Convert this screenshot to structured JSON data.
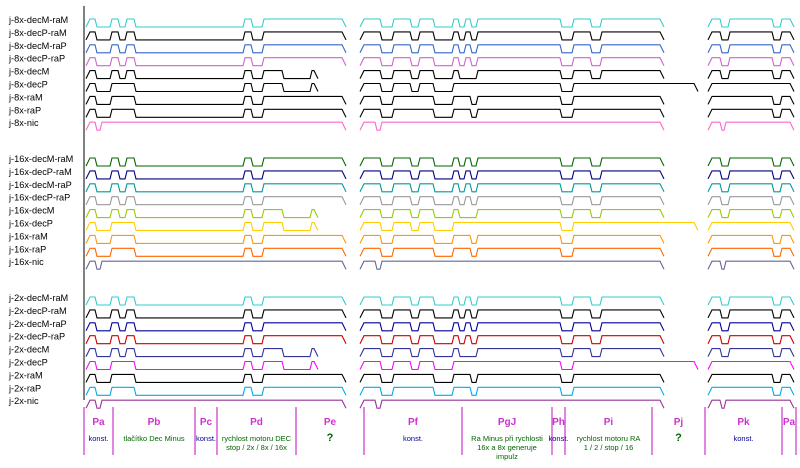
{
  "signals": [
    {
      "label": "j-8x-decM-raM",
      "color": "#33cccc",
      "k": 1
    },
    {
      "label": "j-8x-decP-raM",
      "color": "#000000",
      "k": 2
    },
    {
      "label": "j-8x-decM-raP",
      "color": "#3366cc",
      "k": 3
    },
    {
      "label": "j-8x-decP-raP",
      "color": "#cc66cc",
      "k": 4
    },
    {
      "label": "j-8x-decM",
      "color": "#000000",
      "k": 5
    },
    {
      "label": "j-8x-decP",
      "color": "#000000",
      "k": 6
    },
    {
      "label": "j-8x-raM",
      "color": "#000000",
      "k": 7
    },
    {
      "label": "j-8x-raP",
      "color": "#000000",
      "k": 8
    },
    {
      "label": "j-8x-nic",
      "color": "#ff66cc",
      "k": 9
    },
    {
      "label": "j-16x-decM-raM",
      "color": "#006600",
      "k": 1
    },
    {
      "label": "j-16x-decP-raM",
      "color": "#000080",
      "k": 2
    },
    {
      "label": "j-16x-decM-raP",
      "color": "#009999",
      "k": 3
    },
    {
      "label": "j-16x-decP-raP",
      "color": "#999999",
      "k": 4
    },
    {
      "label": "j-16x-decM",
      "color": "#99cc00",
      "k": 5
    },
    {
      "label": "j-16x-decP",
      "color": "#ffcc00",
      "k": 6
    },
    {
      "label": "j-16x-raM",
      "color": "#ff9900",
      "k": 7
    },
    {
      "label": "j-16x-raP",
      "color": "#ff6600",
      "k": 8
    },
    {
      "label": "j-16x-nic",
      "color": "#666699",
      "k": 9
    },
    {
      "label": "j-2x-decM-raM",
      "color": "#33cccc",
      "k": 1
    },
    {
      "label": "j-2x-decP-raM",
      "color": "#000000",
      "k": 2
    },
    {
      "label": "j-2x-decM-raP",
      "color": "#000099",
      "k": 3
    },
    {
      "label": "j-2x-decP-raP",
      "color": "#cc0000",
      "k": 4
    },
    {
      "label": "j-2x-decM",
      "color": "#333399",
      "k": 5
    },
    {
      "label": "j-2x-decP",
      "color": "#ff00ff",
      "k": 6
    },
    {
      "label": "j-2x-raM",
      "color": "#000000",
      "k": 7
    },
    {
      "label": "j-2x-raP",
      "color": "#00aaee",
      "k": 8
    },
    {
      "label": "j-2x-nic",
      "color": "#993399",
      "k": 9
    }
  ],
  "phases": [
    {
      "name": "Pa",
      "desc": [
        "konst."
      ]
    },
    {
      "name": "Pb",
      "desc": [
        "tlačítko Dec Minus"
      ]
    },
    {
      "name": "Pc",
      "desc": [
        "konst."
      ]
    },
    {
      "name": "Pd",
      "desc": [
        "rychlost motoru DEC",
        "stop / 2x / 8x / 16x"
      ]
    },
    {
      "name": "Pe",
      "desc": [
        "?"
      ]
    },
    {
      "name": "Pf",
      "desc": [
        "konst."
      ]
    },
    {
      "name": "PgJ",
      "desc": [
        "Ra Minus při rychlosti",
        "16x a 8x generuje",
        "impulz"
      ]
    },
    {
      "name": "Ph",
      "desc": [
        "konst."
      ]
    },
    {
      "name": "Pi",
      "desc": [
        "rychlost motoru RA",
        "1 / 2 / stop / 16"
      ]
    },
    {
      "name": "Pj",
      "desc": [
        "?"
      ]
    },
    {
      "name": "Pk",
      "desc": [
        "konst."
      ]
    },
    {
      "name": "Pa",
      "desc": []
    }
  ],
  "colors": {
    "phase_name": "#cc33cc",
    "phase_desc_blue": "#000099",
    "phase_desc_green": "#006600",
    "phase_divider": "#cc33cc",
    "axis": "#000000"
  }
}
